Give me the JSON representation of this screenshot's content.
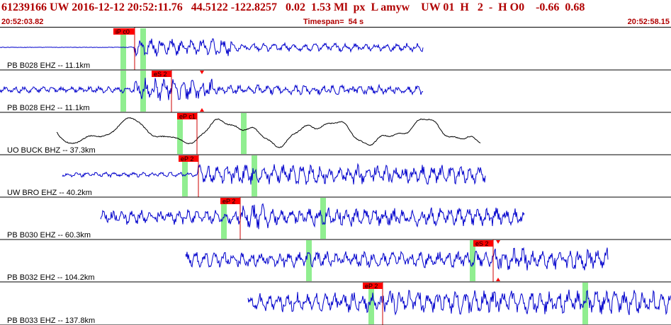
{
  "header": {
    "title": "61239166 UW 2016-12-12 20:52:11.76   44.5122 -122.8257   0.02  1.53 Ml  px  L amyw    UW 01  H   2  -  H O0    -0.66  0.68",
    "time_start": "20:52:03.82",
    "timespan": "Timespan=  54 s",
    "time_end": "20:52:58.15"
  },
  "colors": {
    "header_text": "#b00000",
    "pick_flag": "#ff0000",
    "pick_line": "#cc0000",
    "window_highlight": "#90ee90",
    "trace_blue": "#0000cc",
    "trace_black": "#000000"
  },
  "channels": [
    {
      "label": "PB B028 EHZ -- 11.1km",
      "pick_label": "iP c0",
      "color": "blue"
    },
    {
      "label": "PB B028 EH2 -- 11.1km",
      "pick_label": "eS 2",
      "color": "blue"
    },
    {
      "label": "UO BUCK BHZ -- 37.3km",
      "pick_label": "eP c1",
      "color": "black"
    },
    {
      "label": "UW BRO EHZ -- 40.2km",
      "pick_label": "eP 2",
      "color": "blue"
    },
    {
      "label": "PB B030 EHZ -- 60.3km",
      "pick_label": "eP 2",
      "color": "blue"
    },
    {
      "label": "PB B032 EH2 -- 104.2km",
      "pick_label": "eS 2",
      "color": "blue"
    },
    {
      "label": "PB B033 EHZ -- 137.8km",
      "pick_label": "eP 2",
      "color": "blue"
    }
  ]
}
